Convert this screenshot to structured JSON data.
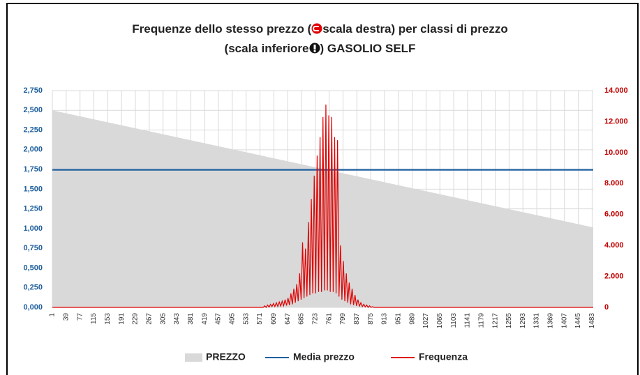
{
  "chart_data": {
    "type": "combo",
    "title": [
      "Frequenze dello stesso prezzo (",
      "scala destra) per classi di prezzo",
      "(scala inferiore",
      ") GASOLIO SELF"
    ],
    "xlim": [
      1,
      1486
    ],
    "xticks": [
      1,
      39,
      77,
      115,
      153,
      191,
      229,
      267,
      305,
      343,
      381,
      419,
      457,
      495,
      533,
      571,
      609,
      647,
      685,
      723,
      761,
      799,
      837,
      875,
      913,
      951,
      989,
      1027,
      1065,
      1103,
      1141,
      1179,
      1217,
      1255,
      1293,
      1331,
      1369,
      1407,
      1445,
      1483
    ],
    "ylim": [
      0,
      2.75
    ],
    "yticks": [
      {
        "value": 0,
        "label": "0,000"
      },
      {
        "value": 0.25,
        "label": "0,250"
      },
      {
        "value": 0.5,
        "label": "0,500"
      },
      {
        "value": 0.75,
        "label": "0,750"
      },
      {
        "value": 1,
        "label": "1,000"
      },
      {
        "value": 1.25,
        "label": "1,250"
      },
      {
        "value": 1.5,
        "label": "1,500"
      },
      {
        "value": 1.75,
        "label": "1,750"
      },
      {
        "value": 2,
        "label": "2,000"
      },
      {
        "value": 2.25,
        "label": "2,250"
      },
      {
        "value": 2.5,
        "label": "2,500"
      },
      {
        "value": 2.75,
        "label": "2,750"
      }
    ],
    "y2lim": [
      0,
      14000
    ],
    "y2ticks": [
      0,
      {
        "value": 2000,
        "label": "2.000"
      },
      {
        "value": 4000,
        "label": "4.000"
      },
      {
        "value": 6000,
        "label": "6.000"
      },
      {
        "value": 8000,
        "label": "8.000"
      },
      {
        "value": 10000,
        "label": "10.000"
      },
      {
        "value": 12000,
        "label": "12.000"
      },
      {
        "value": 14000,
        "label": "14.000"
      }
    ],
    "grid": true,
    "legend": "bottom",
    "series": [
      {
        "name": "PREZZO",
        "type": "area",
        "color": "#d9d9d9",
        "x": [
          1,
          1486
        ],
        "values": [
          2.5,
          1.015
        ]
      },
      {
        "name": "Media prezzo",
        "type": "line",
        "color": "#1f5f9e",
        "x": [
          1,
          1486
        ],
        "values": [
          1.745,
          1.745
        ]
      },
      {
        "name": "Frequenza",
        "type": "line",
        "axis": "y2",
        "color": "#e00000",
        "x": [
          1,
          580,
          584,
          588,
          592,
          596,
          600,
          604,
          608,
          612,
          616,
          620,
          624,
          628,
          632,
          636,
          640,
          644,
          648,
          652,
          656,
          660,
          664,
          668,
          672,
          676,
          680,
          684,
          688,
          692,
          696,
          700,
          704,
          708,
          712,
          716,
          720,
          724,
          728,
          732,
          736,
          740,
          744,
          748,
          752,
          756,
          760,
          764,
          768,
          772,
          776,
          780,
          784,
          788,
          792,
          796,
          800,
          804,
          808,
          812,
          816,
          820,
          824,
          828,
          832,
          836,
          840,
          844,
          848,
          852,
          856,
          860,
          864,
          868,
          872,
          876,
          880,
          884,
          1486
        ],
        "values": [
          0,
          0,
          100,
          0,
          150,
          20,
          200,
          50,
          250,
          50,
          300,
          60,
          350,
          80,
          400,
          100,
          500,
          120,
          600,
          150,
          900,
          200,
          1200,
          300,
          1500,
          400,
          2200,
          500,
          4200,
          600,
          3800,
          700,
          5500,
          800,
          7000,
          900,
          8500,
          900,
          9800,
          1000,
          11000,
          1000,
          12300,
          1100,
          13100,
          1100,
          12400,
          1000,
          12300,
          1000,
          11000,
          900,
          10800,
          700,
          4000,
          500,
          3000,
          400,
          2200,
          300,
          1600,
          200,
          1200,
          150,
          800,
          100,
          500,
          80,
          300,
          50,
          200,
          30,
          150,
          0,
          100,
          0,
          50,
          0,
          0
        ]
      }
    ]
  }
}
